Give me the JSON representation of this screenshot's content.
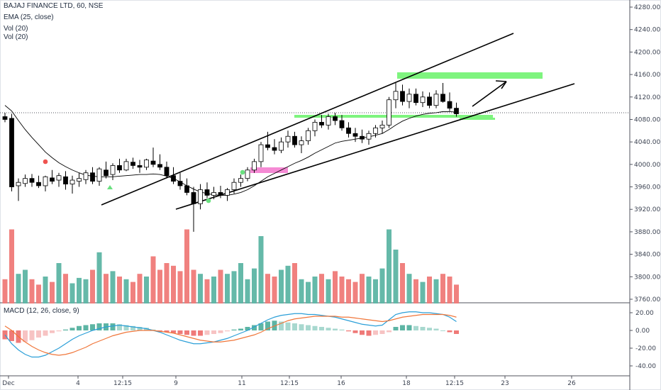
{
  "legend": {
    "symbol": "BAJAJ FINANCE LTD, 60, NSE",
    "ema": "EMA (25, close)",
    "vol1": "Vol (20)",
    "vol2": "Vol (20)",
    "macd": "MACD (12, 26, close, 9)"
  },
  "colors": {
    "up": "#5db5a4",
    "down": "#ef7a78",
    "up_faint": "#a8d8cf",
    "down_faint": "#f7c3c3",
    "macd_line": "#2b9fd8",
    "signal_line": "#f0763a",
    "highlight_green": "#7ef47e",
    "highlight_pink": "#f58ad4"
  },
  "chart_data": [
    {
      "type": "candlestick",
      "title": "BAJAJ FINANCE LTD, 60, NSE",
      "ylim": [
        3760,
        4290
      ],
      "price_ticks": [
        "4280.00",
        "4240.00",
        "4200.00",
        "4160.00",
        "4120.00",
        "4080.00",
        "4040.00",
        "4000.00",
        "3960.00",
        "3920.00",
        "3880.00",
        "3840.00",
        "3800.00",
        "3760.00"
      ],
      "time_labels": [
        "Dec",
        "4",
        "12:15",
        "9",
        "11",
        "12:15",
        "16",
        "18",
        "12:15",
        "23",
        "26"
      ],
      "candles": [
        [
          4085,
          4092,
          4075,
          4080
        ],
        [
          4082,
          4090,
          3952,
          3960
        ],
        [
          3962,
          3975,
          3935,
          3968
        ],
        [
          3966,
          3982,
          3960,
          3975
        ],
        [
          3975,
          3983,
          3960,
          3968
        ],
        [
          3968,
          3980,
          3958,
          3962
        ],
        [
          3962,
          3980,
          3952,
          3978
        ],
        [
          3976,
          3990,
          3965,
          3970
        ],
        [
          3972,
          3985,
          3960,
          3980
        ],
        [
          3978,
          3988,
          3955,
          3965
        ],
        [
          3965,
          3980,
          3948,
          3972
        ],
        [
          3970,
          3985,
          3960,
          3975
        ],
        [
          3973,
          3990,
          3965,
          3985
        ],
        [
          3985,
          3995,
          3965,
          3970
        ],
        [
          3970,
          3995,
          3962,
          3992
        ],
        [
          3990,
          4005,
          3975,
          3980
        ],
        [
          3982,
          4002,
          3972,
          3998
        ],
        [
          3998,
          4010,
          3985,
          3990
        ],
        [
          3990,
          4010,
          3988,
          4005
        ],
        [
          4004,
          4012,
          3992,
          3998
        ],
        [
          3998,
          4008,
          3985,
          3995
        ],
        [
          3995,
          4010,
          3990,
          4008
        ],
        [
          4006,
          4030,
          3995,
          4000
        ],
        [
          4000,
          4018,
          3990,
          3995
        ],
        [
          3995,
          4005,
          3975,
          3980
        ],
        [
          3980,
          3995,
          3965,
          3970
        ],
        [
          3970,
          3985,
          3955,
          3962
        ],
        [
          3962,
          3975,
          3945,
          3950
        ],
        [
          3950,
          3960,
          3880,
          3930
        ],
        [
          3930,
          3965,
          3920,
          3955
        ],
        [
          3955,
          3968,
          3940,
          3945
        ],
        [
          3945,
          3960,
          3938,
          3950
        ],
        [
          3950,
          3962,
          3940,
          3945
        ],
        [
          3945,
          3958,
          3935,
          3955
        ],
        [
          3955,
          3975,
          3948,
          3968
        ],
        [
          3968,
          3982,
          3960,
          3975
        ],
        [
          3975,
          3995,
          3970,
          3990
        ],
        [
          3990,
          4010,
          3985,
          4005
        ],
        [
          4005,
          4040,
          3995,
          4035
        ],
        [
          4035,
          4058,
          4025,
          4030
        ],
        [
          4030,
          4045,
          4018,
          4025
        ],
        [
          4025,
          4048,
          4020,
          4040
        ],
        [
          4040,
          4060,
          4030,
          4050
        ],
        [
          4050,
          4058,
          4030,
          4035
        ],
        [
          4035,
          4050,
          4020,
          4042
        ],
        [
          4042,
          4065,
          4035,
          4060
        ],
        [
          4060,
          4080,
          4050,
          4075
        ],
        [
          4075,
          4088,
          4065,
          4070
        ],
        [
          4070,
          4090,
          4062,
          4085
        ],
        [
          4085,
          4092,
          4070,
          4078
        ],
        [
          4078,
          4088,
          4060,
          4065
        ],
        [
          4065,
          4075,
          4048,
          4055
        ],
        [
          4055,
          4065,
          4040,
          4050
        ],
        [
          4050,
          4062,
          4038,
          4045
        ],
        [
          4045,
          4060,
          4035,
          4055
        ],
        [
          4055,
          4070,
          4048,
          4065
        ],
        [
          4065,
          4078,
          4055,
          4070
        ],
        [
          4070,
          4120,
          4065,
          4115
        ],
        [
          4115,
          4145,
          4100,
          4130
        ],
        [
          4130,
          4142,
          4105,
          4112
        ],
        [
          4112,
          4135,
          4100,
          4125
        ],
        [
          4125,
          4135,
          4105,
          4110
        ],
        [
          4110,
          4130,
          4102,
          4120
        ],
        [
          4120,
          4128,
          4100,
          4105
        ],
        [
          4105,
          4132,
          4100,
          4125
        ],
        [
          4125,
          4145,
          4110,
          4112
        ],
        [
          4112,
          4128,
          4095,
          4100
        ],
        [
          4100,
          4110,
          4085,
          4090
        ]
      ],
      "volumes": [
        18,
        55,
        22,
        25,
        18,
        14,
        20,
        16,
        30,
        22,
        15,
        19,
        18,
        25,
        38,
        22,
        24,
        20,
        18,
        16,
        22,
        20,
        35,
        25,
        30,
        28,
        24,
        55,
        25,
        22,
        18,
        20,
        25,
        22,
        24,
        30,
        18,
        26,
        50,
        22,
        20,
        25,
        28,
        30,
        18,
        16,
        20,
        22,
        18,
        24,
        20,
        18,
        16,
        22,
        20,
        18,
        26,
        55,
        40,
        30,
        22,
        18,
        16,
        20,
        18,
        22,
        20,
        14
      ],
      "ema_25": [
        4105,
        4095,
        4078,
        4062,
        4048,
        4035,
        4022,
        4012,
        4003,
        3996,
        3990,
        3985,
        3981,
        3979,
        3978,
        3978,
        3978,
        3979,
        3980,
        3981,
        3982,
        3982,
        3983,
        3982,
        3979,
        3975,
        3969,
        3962,
        3956,
        3951,
        3948,
        3946,
        3945,
        3945,
        3947,
        3950,
        3955,
        3962,
        3970,
        3978,
        3984,
        3990,
        3996,
        4002,
        4007,
        4013,
        4020,
        4026,
        4032,
        4038,
        4041,
        4043,
        4045,
        4047,
        4049,
        4052,
        4055,
        4062,
        4070,
        4077,
        4082,
        4086,
        4089,
        4091,
        4092,
        4094,
        4094,
        4093
      ]
    },
    {
      "type": "bar",
      "title": "MACD (12, 26, close, 9)",
      "ylim": [
        -45,
        25
      ],
      "y_ticks": [
        "20.00",
        "0.00",
        "-20.00",
        "-40.00"
      ],
      "histogram": [
        -10,
        -12,
        -14,
        -13,
        -11,
        -8,
        -6,
        -3,
        -1,
        1,
        3,
        5,
        6,
        7,
        8,
        8,
        8,
        7,
        6,
        5,
        4,
        3,
        1,
        -1,
        -2,
        -3,
        -4,
        -5,
        -6,
        -6,
        -5,
        -4,
        -3,
        -1,
        1,
        2,
        4,
        6,
        8,
        10,
        11,
        10,
        9,
        8,
        7,
        6,
        5,
        4,
        3,
        2,
        1,
        -1,
        -3,
        -5,
        -6,
        -5,
        -4,
        -2,
        4,
        6,
        6,
        5,
        4,
        3,
        2,
        0,
        -2,
        -4
      ],
      "macd": [
        -5,
        -15,
        -22,
        -27,
        -30,
        -30,
        -28,
        -24,
        -20,
        -15,
        -10,
        -6,
        -3,
        0,
        2,
        4,
        5,
        6,
        5,
        4,
        3,
        2,
        0,
        -2,
        -5,
        -8,
        -11,
        -13,
        -15,
        -15,
        -14,
        -13,
        -11,
        -9,
        -6,
        -3,
        0,
        4,
        8,
        12,
        15,
        17,
        18,
        19,
        19,
        18,
        18,
        17,
        16,
        15,
        13,
        11,
        9,
        7,
        6,
        5,
        6,
        12,
        18,
        20,
        21,
        21,
        20,
        20,
        19,
        18,
        15,
        10
      ],
      "signal": [
        5,
        0,
        -7,
        -13,
        -18,
        -22,
        -25,
        -27,
        -28,
        -27,
        -25,
        -22,
        -19,
        -15,
        -12,
        -9,
        -6,
        -4,
        -2,
        -1,
        0,
        0,
        0,
        -1,
        -2,
        -3,
        -5,
        -7,
        -9,
        -11,
        -12,
        -13,
        -13,
        -12,
        -11,
        -9,
        -7,
        -5,
        -2,
        2,
        5,
        8,
        11,
        13,
        14,
        15,
        16,
        16,
        16,
        16,
        15,
        15,
        14,
        13,
        12,
        11,
        10,
        11,
        13,
        15,
        16,
        17,
        18,
        18,
        18,
        18,
        17,
        15
      ]
    }
  ]
}
